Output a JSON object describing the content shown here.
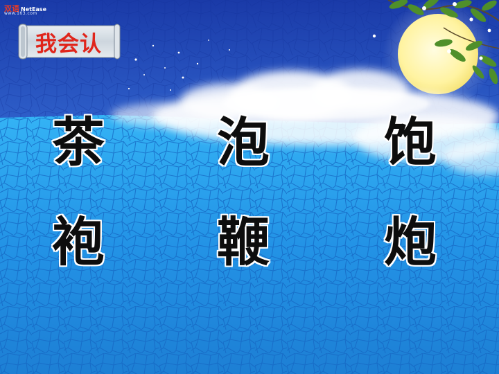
{
  "slide": {
    "logo": {
      "brand_cn": "双语",
      "brand_en": "NetEase",
      "site": "www.163.com"
    },
    "title": "我会认",
    "characters": [
      {
        "char": "茶"
      },
      {
        "char": "泡"
      },
      {
        "char": "饱"
      },
      {
        "char": "袍"
      },
      {
        "char": "鞭"
      },
      {
        "char": "炮"
      }
    ],
    "colors": {
      "sky_top": "#1b3fae",
      "sky_mid": "#3d7fe8",
      "mosaic": "#2aa3f0",
      "moon": "#fff7a8",
      "title_red": "#e0251b",
      "scroll": "#cfd8e0"
    }
  }
}
